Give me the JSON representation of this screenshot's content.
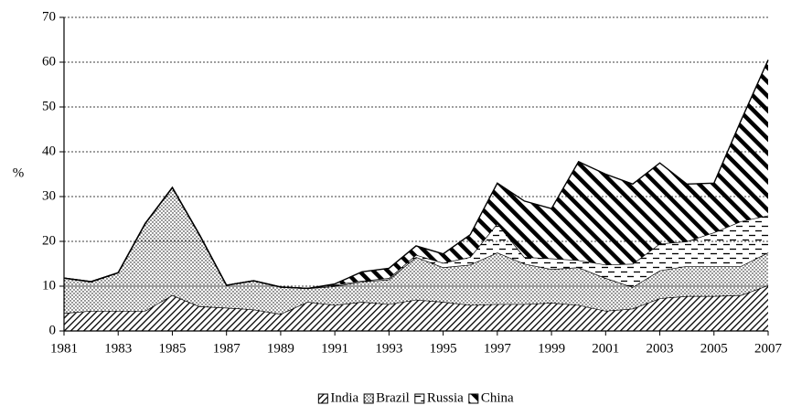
{
  "chart_data": {
    "type": "stacked_area",
    "ylabel": "%",
    "x": [
      1981,
      1982,
      1983,
      1984,
      1985,
      1986,
      1987,
      1988,
      1989,
      1990,
      1991,
      1992,
      1993,
      1994,
      1995,
      1996,
      1997,
      1998,
      1999,
      2000,
      2001,
      2002,
      2003,
      2004,
      2005,
      2006,
      2007
    ],
    "series": [
      {
        "name": "India",
        "color": "#000000",
        "values": [
          4,
          4.5,
          4.5,
          4.5,
          8,
          5.5,
          5.2,
          4.8,
          3.8,
          6.5,
          5.8,
          6.5,
          6,
          7,
          6.5,
          5.8,
          6,
          6,
          6.3,
          5.8,
          4.5,
          5,
          7.3,
          7.8,
          7.8,
          8,
          10.2
        ]
      },
      {
        "name": "Brazil",
        "color": "#000000",
        "values": [
          7.8,
          6.5,
          8.5,
          19.5,
          24,
          16,
          5,
          6.4,
          6,
          3,
          4.2,
          4.5,
          5.5,
          9.5,
          7.7,
          9,
          11.5,
          9,
          7.5,
          8.4,
          7.3,
          4.8,
          6.2,
          6.7,
          6.7,
          6.5,
          7.3
        ]
      },
      {
        "name": "Russia",
        "color": "#000000",
        "values": [
          0,
          0,
          0,
          0,
          0,
          0,
          0,
          0,
          0,
          0,
          0.3,
          0.2,
          0.3,
          0.5,
          1,
          1.7,
          6.5,
          1.5,
          2.4,
          1.6,
          3,
          5.2,
          6,
          5.5,
          7.5,
          10,
          8.3
        ]
      },
      {
        "name": "China",
        "color": "#000000",
        "values": [
          0,
          0,
          0,
          0,
          0,
          0,
          0,
          0,
          0,
          0,
          0.2,
          2,
          2.2,
          2,
          2,
          5,
          9,
          12.5,
          11.1,
          22,
          20.2,
          17.8,
          18,
          12.8,
          11,
          22.5,
          34.7
        ]
      }
    ],
    "xlim": [
      1981,
      2007
    ],
    "xticks": [
      1981,
      1983,
      1985,
      1987,
      1989,
      1991,
      1993,
      1995,
      1997,
      1999,
      2001,
      2003,
      2005,
      2007
    ],
    "ylim": [
      0,
      70
    ],
    "yticks": [
      0,
      10,
      20,
      30,
      40,
      50,
      60,
      70
    ],
    "grid": true,
    "legend": "bottom"
  }
}
